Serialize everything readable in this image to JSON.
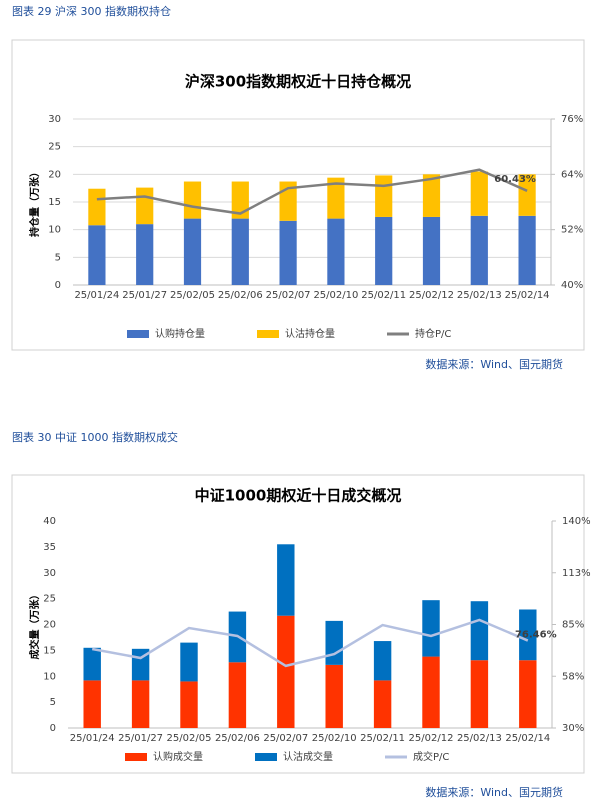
{
  "chart_data": [
    {
      "type": "bar",
      "caption": "图表 29  沪深 300 指数期权持仓",
      "title": "沪深300指数期权近十日持仓概况",
      "y_label": "持仓量（万张）",
      "source": "数据来源：Wind、国元期货",
      "stacked": true,
      "grid": true,
      "legend": "bottom",
      "categories": [
        "25/01/24",
        "25/01/27",
        "25/02/05",
        "25/02/06",
        "25/02/07",
        "25/02/10",
        "25/02/11",
        "25/02/12",
        "25/02/13",
        "25/02/14"
      ],
      "series": [
        {
          "name": "认购持仓量",
          "type": "bar",
          "color": "#4472c4",
          "values": [
            10.8,
            11.0,
            12.0,
            12.0,
            11.6,
            12.0,
            12.3,
            12.3,
            12.5,
            12.5
          ]
        },
        {
          "name": "认沽持仓量",
          "type": "bar",
          "color": "#ffc000",
          "values": [
            6.6,
            6.6,
            6.7,
            6.7,
            7.1,
            7.4,
            7.5,
            7.7,
            8.0,
            7.5
          ]
        },
        {
          "name": "持仓P/C",
          "type": "line",
          "axis": "y2",
          "color": "#7f7f7f",
          "values": [
            58.6,
            59.2,
            57.0,
            55.5,
            61.0,
            62.0,
            61.5,
            63.0,
            65.0,
            60.43
          ],
          "value_labels": [
            null,
            null,
            null,
            null,
            null,
            null,
            null,
            null,
            null,
            "60.43%"
          ]
        }
      ],
      "ylim": [
        0,
        30
      ],
      "yticks": [
        0,
        5,
        10,
        15,
        20,
        25,
        30
      ],
      "y2lim": [
        40,
        76
      ],
      "y2ticks": [
        {
          "value": 40,
          "label": "40%"
        },
        {
          "value": 52,
          "label": "52%"
        },
        {
          "value": 64,
          "label": "64%"
        },
        {
          "value": 76,
          "label": "76%"
        }
      ]
    },
    {
      "type": "bar",
      "caption": "图表 30  中证 1000 指数期权成交",
      "title": "中证1000期权近十日成交概况",
      "y_label": "成交量（万张）",
      "source": "数据来源：Wind、国元期货",
      "stacked": true,
      "grid": false,
      "legend": "bottom",
      "categories": [
        "25/01/24",
        "25/01/27",
        "25/02/05",
        "25/02/06",
        "25/02/07",
        "25/02/10",
        "25/02/11",
        "25/02/12",
        "25/02/13",
        "25/02/14"
      ],
      "series": [
        {
          "name": "认购成交量",
          "type": "bar",
          "color": "#ff3300",
          "values": [
            9.2,
            9.2,
            9.0,
            12.7,
            21.7,
            12.2,
            9.2,
            13.8,
            13.1,
            13.1
          ]
        },
        {
          "name": "认沽成交量",
          "type": "bar",
          "color": "#0070c0",
          "values": [
            6.3,
            6.1,
            7.5,
            9.8,
            13.8,
            8.5,
            7.6,
            10.9,
            11.4,
            9.8
          ]
        },
        {
          "name": "成交P/C",
          "type": "line",
          "axis": "y2",
          "color": "#b4c0e0",
          "values": [
            72.0,
            67.2,
            83.1,
            78.9,
            63.0,
            69.3,
            84.7,
            78.9,
            87.4,
            76.46
          ],
          "value_labels": [
            null,
            null,
            null,
            null,
            null,
            null,
            null,
            null,
            null,
            "76.46%"
          ]
        }
      ],
      "ylim": [
        0,
        40
      ],
      "yticks": [
        0,
        5,
        10,
        15,
        20,
        25,
        30,
        35,
        40
      ],
      "y2lim": [
        30,
        140
      ],
      "y2ticks": [
        {
          "value": 30,
          "label": "30%"
        },
        {
          "value": 57.5,
          "label": "58%"
        },
        {
          "value": 85,
          "label": "85%"
        },
        {
          "value": 112.5,
          "label": "113%"
        },
        {
          "value": 140,
          "label": "140%"
        }
      ]
    }
  ]
}
